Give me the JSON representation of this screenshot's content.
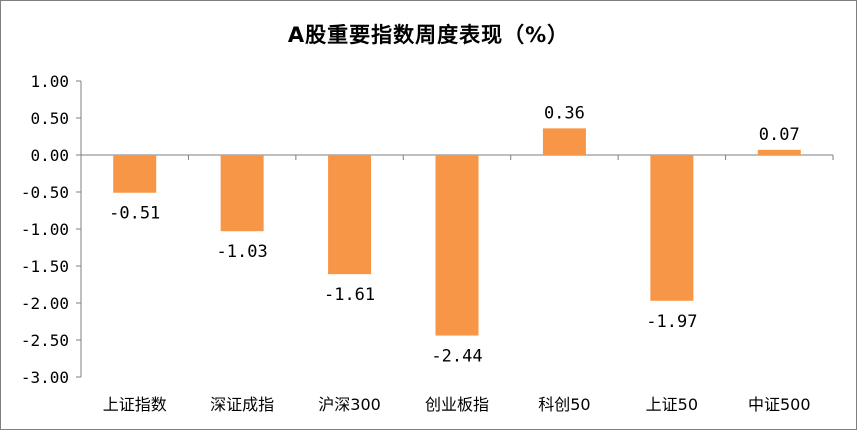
{
  "chart_data": {
    "type": "bar",
    "title": "A股重要指数周度表现（%）",
    "categories": [
      "上证指数",
      "深证成指",
      "沪深300",
      "创业板指",
      "科创50",
      "上证50",
      "中证500"
    ],
    "values": [
      -0.51,
      -1.03,
      -1.61,
      -2.44,
      0.36,
      -1.97,
      0.07
    ],
    "data_labels": [
      "-0.51",
      "-1.03",
      "-1.61",
      "-2.44",
      "0.36",
      "-1.97",
      "0.07"
    ],
    "ylim": [
      -3.0,
      1.0
    ],
    "yticks": [
      1.0,
      0.5,
      0.0,
      -0.5,
      -1.0,
      -1.5,
      -2.0,
      -2.5,
      -3.0
    ],
    "ytick_labels": [
      "1.00",
      "0.50",
      "0.00",
      "-0.50",
      "-1.00",
      "-1.50",
      "-2.00",
      "-2.50",
      "-3.00"
    ],
    "xlabel": "",
    "ylabel": "",
    "grid": false,
    "legend": "none",
    "bar_color": "#F79646",
    "axis_color": "#7f7f7f"
  }
}
